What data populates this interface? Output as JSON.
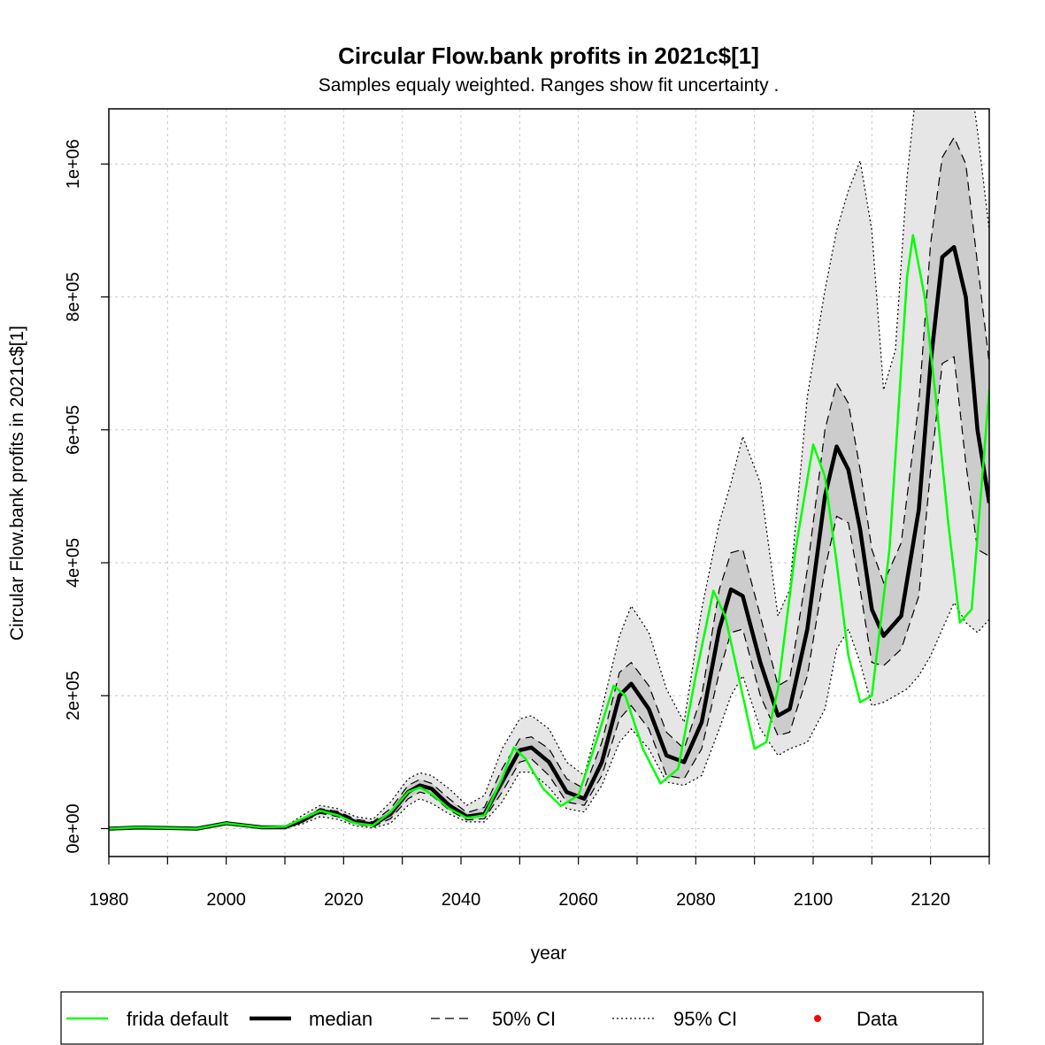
{
  "chart_data": {
    "type": "line",
    "title": "Circular Flow.bank profits in 2021c$[1]",
    "subtitle": "Samples equaly weighted. Ranges show  fit uncertainty .",
    "xlabel": "year",
    "ylabel": "Circular Flow.bank profits in 2021c$[1]",
    "xlim": [
      1980,
      2130
    ],
    "ylim": [
      -42000,
      1083000
    ],
    "x_ticks": [
      1980,
      2000,
      2020,
      2040,
      2060,
      2080,
      2100,
      2120
    ],
    "x_tick_labels": [
      "1980",
      "2000",
      "2020",
      "2040",
      "2060",
      "2080",
      "2100",
      "2120"
    ],
    "y_ticks": [
      0,
      200000,
      400000,
      600000,
      800000,
      1000000
    ],
    "y_tick_labels": [
      "0e+00",
      "2e+05",
      "4e+05",
      "6e+05",
      "8e+05",
      "1e+06"
    ],
    "grid": true,
    "legend_position": "bottom",
    "legend": [
      {
        "label": "frida default",
        "style": "solid",
        "color": "#00ff00"
      },
      {
        "label": "median",
        "style": "thick",
        "color": "#000000"
      },
      {
        "label": "50% CI",
        "style": "dashed",
        "color": "#000000"
      },
      {
        "label": "95% CI",
        "style": "dotted",
        "color": "#000000"
      },
      {
        "label": "Data",
        "style": "point",
        "color": "#ff0000"
      }
    ],
    "colors": {
      "frida": "#00ff00",
      "median": "#000000",
      "band95": "#e6e6e6",
      "band50": "#cccccc",
      "data": "#ff0000",
      "grid": "#c8c8c8"
    },
    "series": [
      {
        "name": "frida default",
        "x": [
          1980,
          1985,
          1990,
          1995,
          2000,
          2003,
          2006,
          2010,
          2013,
          2016,
          2019,
          2022,
          2025,
          2028,
          2031,
          2033,
          2035,
          2038,
          2041,
          2044,
          2047,
          2049,
          2051,
          2054,
          2057,
          2060,
          2063,
          2066,
          2068,
          2071,
          2074,
          2077,
          2080,
          2083,
          2085,
          2087,
          2090,
          2092,
          2094,
          2097,
          2100,
          2102,
          2104,
          2106,
          2108,
          2110,
          2113,
          2116,
          2117,
          2119,
          2121,
          2123,
          2125,
          2127,
          2130
        ],
        "values": [
          0,
          2000,
          1000,
          0,
          8000,
          5000,
          2000,
          3000,
          15000,
          27000,
          20000,
          8000,
          5000,
          25000,
          55000,
          62000,
          52000,
          30000,
          16000,
          20000,
          75000,
          122000,
          105000,
          60000,
          34000,
          50000,
          130000,
          215000,
          200000,
          120000,
          68000,
          90000,
          230000,
          358000,
          320000,
          240000,
          120000,
          130000,
          210000,
          420000,
          578000,
          530000,
          400000,
          260000,
          190000,
          200000,
          420000,
          830000,
          893000,
          800000,
          640000,
          460000,
          310000,
          330000,
          660000
        ]
      },
      {
        "name": "median",
        "x": [
          1980,
          1985,
          1990,
          1995,
          2000,
          2003,
          2006,
          2010,
          2013,
          2016,
          2019,
          2022,
          2025,
          2028,
          2031,
          2033,
          2035,
          2038,
          2041,
          2044,
          2047,
          2050,
          2052,
          2055,
          2058,
          2061,
          2064,
          2067,
          2069,
          2072,
          2075,
          2078,
          2081,
          2084,
          2086,
          2088,
          2091,
          2094,
          2096,
          2099,
          2102,
          2104,
          2106,
          2108,
          2110,
          2112,
          2115,
          2118,
          2120,
          2122,
          2124,
          2126,
          2128,
          2130
        ],
        "values": [
          0,
          1500,
          1000,
          0,
          8000,
          5000,
          2000,
          2000,
          12000,
          27000,
          22000,
          10000,
          6000,
          22000,
          55000,
          65000,
          60000,
          35000,
          18000,
          22000,
          70000,
          118000,
          122000,
          100000,
          55000,
          45000,
          100000,
          200000,
          218000,
          180000,
          110000,
          100000,
          160000,
          300000,
          360000,
          350000,
          250000,
          170000,
          180000,
          300000,
          500000,
          575000,
          540000,
          450000,
          330000,
          290000,
          320000,
          480000,
          700000,
          860000,
          875000,
          800000,
          600000,
          490000
        ]
      },
      {
        "name": "50% CI",
        "x": [
          1980,
          1985,
          1990,
          1995,
          2000,
          2003,
          2006,
          2010,
          2013,
          2016,
          2019,
          2022,
          2025,
          2028,
          2031,
          2033,
          2035,
          2038,
          2041,
          2044,
          2047,
          2050,
          2052,
          2055,
          2058,
          2061,
          2064,
          2067,
          2069,
          2072,
          2075,
          2078,
          2081,
          2084,
          2086,
          2088,
          2091,
          2094,
          2096,
          2099,
          2102,
          2104,
          2106,
          2108,
          2110,
          2112,
          2115,
          2118,
          2120,
          2122,
          2124,
          2126,
          2128,
          2130
        ],
        "upper": [
          0,
          1500,
          1000,
          0,
          8000,
          5000,
          2000,
          2500,
          15000,
          30000,
          26000,
          14000,
          10000,
          30000,
          65000,
          74000,
          68000,
          45000,
          24000,
          32000,
          90000,
          135000,
          138000,
          120000,
          75000,
          60000,
          130000,
          235000,
          250000,
          215000,
          145000,
          120000,
          200000,
          360000,
          415000,
          420000,
          320000,
          215000,
          225000,
          390000,
          600000,
          670000,
          640000,
          540000,
          420000,
          370000,
          430000,
          640000,
          880000,
          1010000,
          1040000,
          1000000,
          850000,
          700000
        ],
        "lower": [
          0,
          1500,
          1000,
          0,
          8000,
          5000,
          2000,
          1500,
          10000,
          23000,
          18000,
          7000,
          3000,
          15000,
          45000,
          55000,
          50000,
          28000,
          13000,
          15000,
          55000,
          100000,
          105000,
          80000,
          40000,
          35000,
          80000,
          165000,
          185000,
          150000,
          80000,
          75000,
          120000,
          235000,
          295000,
          300000,
          200000,
          140000,
          145000,
          230000,
          390000,
          470000,
          460000,
          360000,
          250000,
          245000,
          270000,
          350000,
          540000,
          700000,
          710000,
          550000,
          420000,
          410000
        ]
      },
      {
        "name": "95% CI",
        "x": [
          1980,
          1985,
          1990,
          1995,
          2000,
          2003,
          2006,
          2010,
          2013,
          2016,
          2019,
          2022,
          2025,
          2028,
          2031,
          2033,
          2035,
          2038,
          2041,
          2044,
          2047,
          2050,
          2052,
          2055,
          2058,
          2061,
          2064,
          2067,
          2069,
          2072,
          2075,
          2078,
          2081,
          2084,
          2086,
          2088,
          2091,
          2094,
          2096,
          2099,
          2102,
          2104,
          2106,
          2108,
          2110,
          2112,
          2114,
          2116,
          2118,
          2120,
          2122,
          2124,
          2126,
          2128,
          2130
        ],
        "upper": [
          0,
          1500,
          1000,
          0,
          8000,
          5000,
          2000,
          3000,
          20000,
          35000,
          30000,
          18000,
          14000,
          40000,
          75000,
          84000,
          80000,
          60000,
          35000,
          50000,
          120000,
          165000,
          170000,
          150000,
          100000,
          80000,
          180000,
          290000,
          335000,
          295000,
          210000,
          160000,
          330000,
          460000,
          520000,
          590000,
          520000,
          320000,
          360000,
          650000,
          810000,
          900000,
          960000,
          1005000,
          900000,
          660000,
          720000,
          980000,
          1150000,
          1300000,
          1350000,
          1300000,
          1180000,
          1050000,
          900000
        ],
        "lower": [
          0,
          1500,
          1000,
          0,
          8000,
          5000,
          2000,
          1000,
          7000,
          18000,
          14000,
          4000,
          1000,
          8000,
          35000,
          45000,
          38000,
          22000,
          10000,
          10000,
          40000,
          85000,
          85000,
          62000,
          30000,
          25000,
          65000,
          130000,
          150000,
          120000,
          70000,
          65000,
          80000,
          150000,
          200000,
          230000,
          150000,
          110000,
          120000,
          130000,
          180000,
          270000,
          300000,
          250000,
          185000,
          190000,
          200000,
          210000,
          230000,
          260000,
          300000,
          340000,
          310000,
          295000,
          315000
        ]
      }
    ]
  }
}
